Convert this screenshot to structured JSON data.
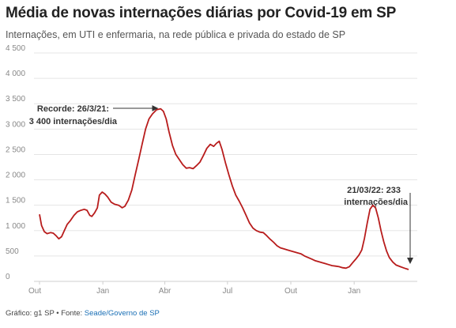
{
  "header": {
    "title": "Média de novas internações diárias por Covid-19 em SP",
    "subtitle": "Internações, em UTI e enfermaria, na rede pública e privada do estado de SP"
  },
  "footer": {
    "prefix": "Gráfico: g1 SP • Fonte: ",
    "source": "Seade/Governo de SP"
  },
  "colors": {
    "line": "#b81c1c",
    "grid": "#e5e5e5",
    "axis": "#cfcfcf"
  },
  "chart_data": {
    "type": "line",
    "title": "Média de novas internações diárias por Covid-19 em SP",
    "subtitle": "Internações, em UTI e enfermaria, na rede pública e privada do estado de SP",
    "ylim": [
      0,
      4500
    ],
    "y_ticks": [
      {
        "value": 0,
        "label": "0"
      },
      {
        "value": 500,
        "label": "500"
      },
      {
        "value": 1000,
        "label": "1 000"
      },
      {
        "value": 1500,
        "label": "1 500"
      },
      {
        "value": 2000,
        "label": "2 000"
      },
      {
        "value": 2500,
        "label": "2 500"
      },
      {
        "value": 3000,
        "label": "3 000"
      },
      {
        "value": 3500,
        "label": "3 500"
      },
      {
        "value": 4000,
        "label": "4 000"
      },
      {
        "value": 4500,
        "label": "4 500"
      }
    ],
    "xlim": [
      "2020-10-01",
      "2022-03-21"
    ],
    "x_ticks": [
      {
        "date": "2020-10-01",
        "label": "Out"
      },
      {
        "date": "2021-01-01",
        "label": "Jan"
      },
      {
        "date": "2021-04-01",
        "label": "Abr"
      },
      {
        "date": "2021-07-01",
        "label": "Jul"
      },
      {
        "date": "2021-10-01",
        "label": "Out"
      },
      {
        "date": "2022-01-01",
        "label": "Jan"
      }
    ],
    "grid": true,
    "series": [
      {
        "points": [
          [
            "2020-10-01",
            1320
          ],
          [
            "2020-10-04",
            1100
          ],
          [
            "2020-10-08",
            980
          ],
          [
            "2020-10-12",
            940
          ],
          [
            "2020-10-17",
            960
          ],
          [
            "2020-10-21",
            950
          ],
          [
            "2020-10-25",
            900
          ],
          [
            "2020-10-29",
            840
          ],
          [
            "2020-11-02",
            880
          ],
          [
            "2020-11-06",
            1000
          ],
          [
            "2020-11-10",
            1120
          ],
          [
            "2020-11-15",
            1200
          ],
          [
            "2020-11-20",
            1300
          ],
          [
            "2020-11-25",
            1370
          ],
          [
            "2020-11-30",
            1400
          ],
          [
            "2020-12-05",
            1420
          ],
          [
            "2020-12-09",
            1400
          ],
          [
            "2020-12-13",
            1300
          ],
          [
            "2020-12-16",
            1280
          ],
          [
            "2020-12-20",
            1350
          ],
          [
            "2020-12-24",
            1450
          ],
          [
            "2020-12-27",
            1700
          ],
          [
            "2020-12-31",
            1760
          ],
          [
            "2021-01-04",
            1720
          ],
          [
            "2021-01-08",
            1660
          ],
          [
            "2021-01-13",
            1560
          ],
          [
            "2021-01-18",
            1520
          ],
          [
            "2021-01-24",
            1500
          ],
          [
            "2021-01-29",
            1450
          ],
          [
            "2021-02-02",
            1480
          ],
          [
            "2021-02-07",
            1600
          ],
          [
            "2021-02-12",
            1800
          ],
          [
            "2021-02-17",
            2100
          ],
          [
            "2021-02-22",
            2400
          ],
          [
            "2021-02-27",
            2700
          ],
          [
            "2021-03-04",
            3000
          ],
          [
            "2021-03-09",
            3200
          ],
          [
            "2021-03-14",
            3300
          ],
          [
            "2021-03-20",
            3380
          ],
          [
            "2021-03-26",
            3400
          ],
          [
            "2021-03-30",
            3350
          ],
          [
            "2021-04-03",
            3200
          ],
          [
            "2021-04-07",
            2950
          ],
          [
            "2021-04-12",
            2680
          ],
          [
            "2021-04-17",
            2500
          ],
          [
            "2021-04-22",
            2400
          ],
          [
            "2021-04-27",
            2300
          ],
          [
            "2021-05-02",
            2230
          ],
          [
            "2021-05-07",
            2240
          ],
          [
            "2021-05-12",
            2220
          ],
          [
            "2021-05-17",
            2280
          ],
          [
            "2021-05-22",
            2350
          ],
          [
            "2021-05-27",
            2480
          ],
          [
            "2021-06-01",
            2620
          ],
          [
            "2021-06-06",
            2700
          ],
          [
            "2021-06-11",
            2660
          ],
          [
            "2021-06-15",
            2720
          ],
          [
            "2021-06-19",
            2760
          ],
          [
            "2021-06-23",
            2600
          ],
          [
            "2021-06-28",
            2340
          ],
          [
            "2021-07-03",
            2100
          ],
          [
            "2021-07-08",
            1880
          ],
          [
            "2021-07-13",
            1700
          ],
          [
            "2021-07-18",
            1580
          ],
          [
            "2021-07-23",
            1450
          ],
          [
            "2021-07-28",
            1300
          ],
          [
            "2021-08-02",
            1150
          ],
          [
            "2021-08-07",
            1050
          ],
          [
            "2021-08-12",
            1000
          ],
          [
            "2021-08-17",
            970
          ],
          [
            "2021-08-22",
            960
          ],
          [
            "2021-08-27",
            900
          ],
          [
            "2021-09-01",
            830
          ],
          [
            "2021-09-06",
            770
          ],
          [
            "2021-09-11",
            700
          ],
          [
            "2021-09-16",
            660
          ],
          [
            "2021-09-21",
            640
          ],
          [
            "2021-09-26",
            620
          ],
          [
            "2021-10-01",
            600
          ],
          [
            "2021-10-06",
            580
          ],
          [
            "2021-10-11",
            560
          ],
          [
            "2021-10-16",
            540
          ],
          [
            "2021-10-21",
            500
          ],
          [
            "2021-10-26",
            470
          ],
          [
            "2021-10-31",
            440
          ],
          [
            "2021-11-05",
            410
          ],
          [
            "2021-11-10",
            390
          ],
          [
            "2021-11-15",
            370
          ],
          [
            "2021-11-20",
            350
          ],
          [
            "2021-11-25",
            330
          ],
          [
            "2021-11-30",
            310
          ],
          [
            "2021-12-05",
            300
          ],
          [
            "2021-12-10",
            290
          ],
          [
            "2021-12-15",
            270
          ],
          [
            "2021-12-20",
            260
          ],
          [
            "2021-12-25",
            290
          ],
          [
            "2021-12-30",
            370
          ],
          [
            "2022-01-04",
            450
          ],
          [
            "2022-01-08",
            520
          ],
          [
            "2022-01-12",
            620
          ],
          [
            "2022-01-16",
            850
          ],
          [
            "2022-01-20",
            1150
          ],
          [
            "2022-01-24",
            1420
          ],
          [
            "2022-01-28",
            1500
          ],
          [
            "2022-02-01",
            1450
          ],
          [
            "2022-02-05",
            1250
          ],
          [
            "2022-02-09",
            1000
          ],
          [
            "2022-02-13",
            780
          ],
          [
            "2022-02-17",
            600
          ],
          [
            "2022-02-21",
            470
          ],
          [
            "2022-02-26",
            380
          ],
          [
            "2022-03-03",
            320
          ],
          [
            "2022-03-09",
            290
          ],
          [
            "2022-03-15",
            260
          ],
          [
            "2022-03-21",
            233
          ]
        ]
      }
    ],
    "annotations": [
      {
        "id": "peak",
        "date": "2021-03-26",
        "value": 3400,
        "lines": [
          "Recorde: 26/3/21:",
          "3 400 internações/dia"
        ]
      },
      {
        "id": "last",
        "date": "2022-03-21",
        "value": 233,
        "lines": [
          "21/03/22: 233",
          "internações/dia"
        ]
      }
    ]
  }
}
